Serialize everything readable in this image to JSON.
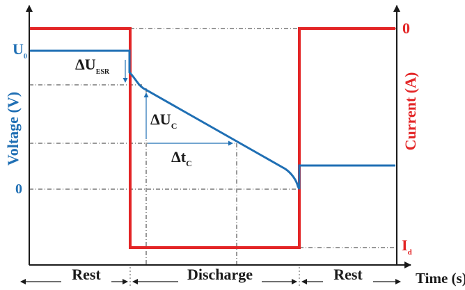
{
  "diagram": {
    "voltage_axis_label": "Voltage (V)",
    "current_axis_label": "Current (A)",
    "time_axis_label": "Time (s)",
    "u0_symbol": "U",
    "u0_subscript": "0",
    "zero_voltage_label": "0",
    "zero_current_label": "0",
    "id_symbol": "I",
    "id_subscript": "d",
    "delta_u_esr_symbol": "ΔU",
    "delta_u_esr_subscript": "ESR",
    "delta_uc_symbol": "ΔU",
    "delta_uc_subscript": "C",
    "delta_tc_symbol": "Δt",
    "delta_tc_subscript": "C",
    "phases": [
      "Rest",
      "Discharge",
      "Rest"
    ],
    "colors": {
      "voltage": "#1f6fb4",
      "current": "#e32526",
      "axis": "#1a1a1a"
    }
  }
}
